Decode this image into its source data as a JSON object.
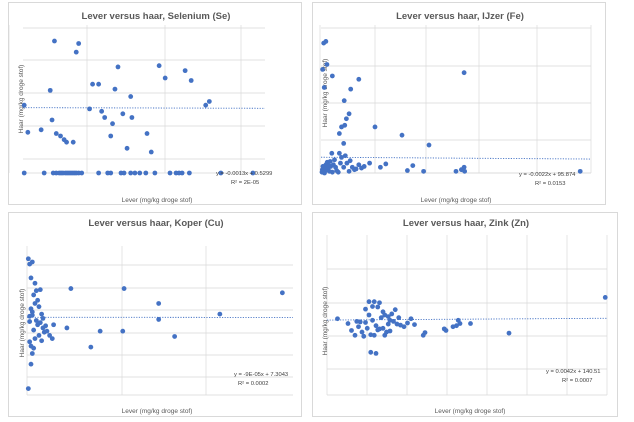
{
  "chart_data": [
    {
      "type": "scatter",
      "title": "Lever versus haar, Selenium (Se)",
      "xlabel": "Lever (mg/kg droge stof)",
      "ylabel": "Haar (mg/kg droge stof)",
      "xlim": [
        0,
        4
      ],
      "ylim": [
        0,
        1.2
      ],
      "equation": "y = -0.0013x + 0.5299",
      "r2": "R² = 2E-05",
      "trend": {
        "slope": -0.0013,
        "intercept": 0.5299
      },
      "points": [
        [
          0.02,
          0.0
        ],
        [
          0.35,
          0.0
        ],
        [
          0.5,
          0.0
        ],
        [
          0.55,
          0.0
        ],
        [
          0.6,
          0.0
        ],
        [
          0.63,
          0.0
        ],
        [
          0.66,
          0.0
        ],
        [
          0.7,
          0.0
        ],
        [
          0.73,
          0.0
        ],
        [
          0.76,
          0.0
        ],
        [
          0.79,
          0.0
        ],
        [
          0.82,
          0.0
        ],
        [
          0.85,
          0.0
        ],
        [
          0.88,
          0.0
        ],
        [
          0.92,
          0.0
        ],
        [
          0.97,
          0.0
        ],
        [
          1.25,
          0.0
        ],
        [
          1.4,
          0.0
        ],
        [
          1.45,
          0.0
        ],
        [
          1.62,
          0.0
        ],
        [
          1.67,
          0.0
        ],
        [
          1.78,
          0.0
        ],
        [
          1.85,
          0.0
        ],
        [
          1.93,
          0.0
        ],
        [
          2.03,
          0.0
        ],
        [
          2.18,
          0.0
        ],
        [
          2.43,
          0.0
        ],
        [
          2.53,
          0.0
        ],
        [
          2.58,
          0.0
        ],
        [
          2.63,
          0.0
        ],
        [
          2.75,
          0.0
        ],
        [
          3.27,
          0.0
        ],
        [
          3.8,
          0.0
        ],
        [
          0.02,
          0.55
        ],
        [
          0.08,
          0.33
        ],
        [
          0.3,
          0.35
        ],
        [
          0.45,
          0.67
        ],
        [
          0.48,
          0.43
        ],
        [
          0.52,
          1.07
        ],
        [
          0.55,
          0.32
        ],
        [
          0.62,
          0.3
        ],
        [
          0.68,
          0.27
        ],
        [
          0.72,
          0.25
        ],
        [
          0.83,
          0.25
        ],
        [
          0.88,
          0.98
        ],
        [
          0.92,
          1.05
        ],
        [
          1.1,
          0.52
        ],
        [
          1.15,
          0.72
        ],
        [
          1.25,
          0.72
        ],
        [
          1.3,
          0.5
        ],
        [
          1.35,
          0.45
        ],
        [
          1.45,
          0.3
        ],
        [
          1.48,
          0.4
        ],
        [
          1.52,
          0.68
        ],
        [
          1.57,
          0.86
        ],
        [
          1.65,
          0.48
        ],
        [
          1.72,
          0.2
        ],
        [
          1.78,
          0.62
        ],
        [
          1.8,
          0.45
        ],
        [
          2.05,
          0.32
        ],
        [
          2.12,
          0.17
        ],
        [
          2.25,
          0.87
        ],
        [
          2.35,
          0.77
        ],
        [
          2.68,
          0.83
        ],
        [
          2.78,
          0.75
        ],
        [
          3.02,
          0.55
        ],
        [
          3.08,
          0.58
        ]
      ]
    },
    {
      "type": "scatter",
      "title": "Lever versus haar, IJzer (Fe)",
      "xlabel": "Lever (mg/kg droge stof)",
      "ylabel": "Haar (mg/kg droge stof)",
      "xlim": [
        0,
        5000
      ],
      "ylim": [
        0,
        900
      ],
      "equation": "y = -0.0022x + 95.874",
      "r2": "R² = 0.0153",
      "trend": {
        "slope": -0.0022,
        "intercept": 95.874
      },
      "points": [
        [
          15,
          5
        ],
        [
          25,
          20
        ],
        [
          35,
          40
        ],
        [
          45,
          10
        ],
        [
          55,
          30
        ],
        [
          65,
          0
        ],
        [
          80,
          15
        ],
        [
          90,
          50
        ],
        [
          100,
          25
        ],
        [
          115,
          65
        ],
        [
          130,
          30
        ],
        [
          140,
          45
        ],
        [
          155,
          10
        ],
        [
          170,
          70
        ],
        [
          180,
          40
        ],
        [
          200,
          120
        ],
        [
          210,
          5
        ],
        [
          230,
          50
        ],
        [
          250,
          80
        ],
        [
          270,
          35
        ],
        [
          290,
          15
        ],
        [
          320,
          5
        ],
        [
          340,
          120
        ],
        [
          360,
          60
        ],
        [
          380,
          95
        ],
        [
          420,
          35
        ],
        [
          450,
          105
        ],
        [
          480,
          60
        ],
        [
          520,
          10
        ],
        [
          540,
          75
        ],
        [
          580,
          35
        ],
        [
          620,
          20
        ],
        [
          650,
          25
        ],
        [
          700,
          50
        ],
        [
          750,
          30
        ],
        [
          800,
          40
        ],
        [
          900,
          60
        ],
        [
          1100,
          35
        ],
        [
          1200,
          55
        ],
        [
          1600,
          15
        ],
        [
          1700,
          45
        ],
        [
          1900,
          10
        ],
        [
          2500,
          10
        ],
        [
          2600,
          20
        ],
        [
          2650,
          35
        ],
        [
          2660,
          10
        ],
        [
          4800,
          10
        ],
        [
          50,
          790
        ],
        [
          90,
          800
        ],
        [
          30,
          630
        ],
        [
          60,
          520
        ],
        [
          110,
          660
        ],
        [
          210,
          590
        ],
        [
          430,
          440
        ],
        [
          550,
          510
        ],
        [
          700,
          570
        ],
        [
          470,
          330
        ],
        [
          520,
          360
        ],
        [
          440,
          290
        ],
        [
          380,
          280
        ],
        [
          340,
          240
        ],
        [
          420,
          180
        ],
        [
          1000,
          280
        ],
        [
          1500,
          230
        ],
        [
          2000,
          170
        ],
        [
          2650,
          610
        ]
      ]
    },
    {
      "type": "scatter",
      "title": "Lever versus haar, Koper (Cu)",
      "xlabel": "Lever (mg/kg droge stof)",
      "ylabel": "Haar (mg/kg droge stof)",
      "xlim": [
        0,
        200
      ],
      "ylim": [
        0,
        14
      ],
      "equation": "y = -9E-05x + 7.3043",
      "r2": "R² = 0.0002",
      "trend": {
        "slope": -9e-05,
        "intercept": 7.3043
      },
      "points": [
        [
          1,
          12.8
        ],
        [
          2,
          12.3
        ],
        [
          3,
          11.0
        ],
        [
          4,
          12.5
        ],
        [
          5,
          9.4
        ],
        [
          6,
          10.5
        ],
        [
          7,
          9.8
        ],
        [
          8,
          8.9
        ],
        [
          9,
          8.3
        ],
        [
          10,
          9.9
        ],
        [
          11,
          7.6
        ],
        [
          12,
          7.2
        ],
        [
          14,
          6.5
        ],
        [
          15,
          6.0
        ],
        [
          17,
          5.6
        ],
        [
          19,
          5.3
        ],
        [
          20,
          6.6
        ],
        [
          3,
          4.6
        ],
        [
          2,
          5.0
        ],
        [
          4,
          3.9
        ],
        [
          5,
          4.4
        ],
        [
          6,
          5.3
        ],
        [
          3,
          2.9
        ],
        [
          1,
          0.6
        ],
        [
          2,
          6.9
        ],
        [
          4,
          7.8
        ],
        [
          6,
          8.6
        ],
        [
          7,
          7.0
        ],
        [
          8,
          6.6
        ],
        [
          9,
          5.6
        ],
        [
          10,
          6.8
        ],
        [
          11,
          5.1
        ],
        [
          12,
          6.3
        ],
        [
          13,
          5.9
        ],
        [
          2,
          7.4
        ],
        [
          3,
          8.1
        ],
        [
          4,
          7.5
        ],
        [
          5,
          6.1
        ],
        [
          30,
          6.3
        ],
        [
          33,
          10.0
        ],
        [
          48,
          4.5
        ],
        [
          55,
          6.0
        ],
        [
          72,
          6.0
        ],
        [
          73,
          10.0
        ],
        [
          99,
          7.1
        ],
        [
          99,
          8.6
        ],
        [
          111,
          5.5
        ],
        [
          145,
          7.6
        ],
        [
          192,
          9.6
        ]
      ]
    },
    {
      "type": "scatter",
      "title": "Lever versus haar, Zink (Zn)",
      "xlabel": "Lever (mg/kg droge stof)",
      "ylabel": "Haar (mg/kg droge stof)",
      "xlim": [
        0,
        800
      ],
      "ylim": [
        0,
        300
      ],
      "equation": "y = 0.0042x + 140.51",
      "r2": "R² = 0.0007",
      "trend": {
        "slope": 0.0042,
        "intercept": 140.51
      },
      "points": [
        [
          30,
          143
        ],
        [
          60,
          134
        ],
        [
          70,
          121
        ],
        [
          80,
          112
        ],
        [
          85,
          138
        ],
        [
          90,
          128
        ],
        [
          95,
          137
        ],
        [
          100,
          118
        ],
        [
          105,
          110
        ],
        [
          110,
          136
        ],
        [
          110,
          161
        ],
        [
          115,
          125
        ],
        [
          120,
          150
        ],
        [
          120,
          175
        ],
        [
          125,
          113
        ],
        [
          125,
          80
        ],
        [
          130,
          166
        ],
        [
          130,
          140
        ],
        [
          135,
          112
        ],
        [
          135,
          175
        ],
        [
          140,
          78
        ],
        [
          140,
          130
        ],
        [
          145,
          165
        ],
        [
          145,
          122
        ],
        [
          150,
          124
        ],
        [
          150,
          173
        ],
        [
          155,
          145
        ],
        [
          160,
          125
        ],
        [
          160,
          156
        ],
        [
          165,
          150
        ],
        [
          165,
          112
        ],
        [
          170,
          118
        ],
        [
          175,
          133
        ],
        [
          175,
          147
        ],
        [
          180,
          140
        ],
        [
          180,
          120
        ],
        [
          185,
          152
        ],
        [
          190,
          138
        ],
        [
          195,
          160
        ],
        [
          200,
          133
        ],
        [
          205,
          145
        ],
        [
          210,
          131
        ],
        [
          220,
          128
        ],
        [
          230,
          135
        ],
        [
          240,
          143
        ],
        [
          250,
          132
        ],
        [
          275,
          112
        ],
        [
          280,
          117
        ],
        [
          335,
          124
        ],
        [
          340,
          121
        ],
        [
          360,
          128
        ],
        [
          370,
          130
        ],
        [
          375,
          140
        ],
        [
          380,
          134
        ],
        [
          410,
          134
        ],
        [
          520,
          116
        ],
        [
          795,
          183
        ]
      ]
    }
  ]
}
